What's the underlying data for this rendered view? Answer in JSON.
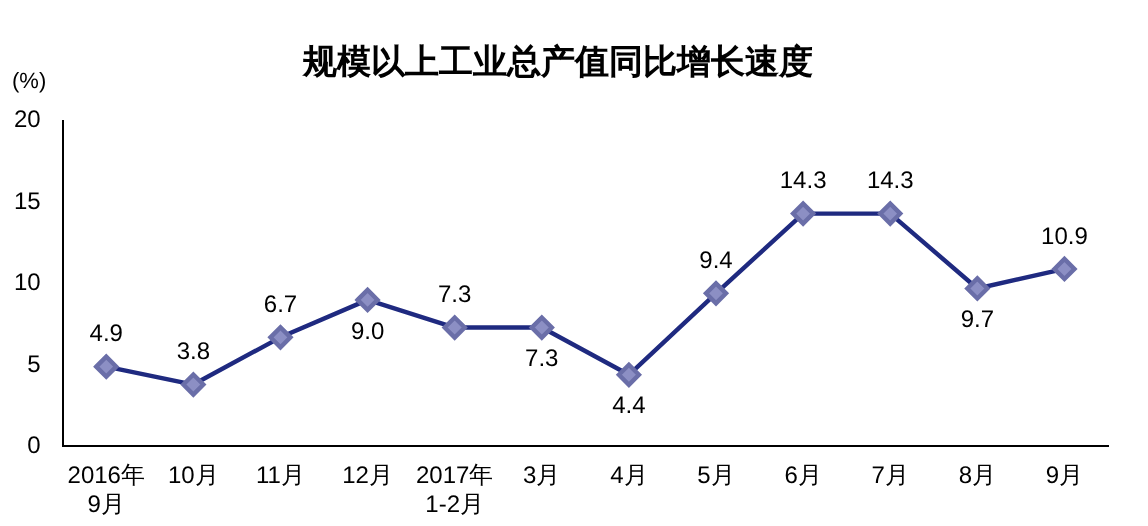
{
  "chart_data": {
    "type": "line",
    "title": "规模以上工业总产值同比增长速度",
    "ylabel": "(%)",
    "categories": [
      "2016年\n9月",
      "10月",
      "11月",
      "12月",
      "2017年\n1-2月",
      "3月",
      "4月",
      "5月",
      "6月",
      "7月",
      "8月",
      "9月"
    ],
    "series": [
      {
        "color": "#1f2a80",
        "values": [
          4.9,
          3.8,
          6.7,
          9.0,
          7.3,
          7.3,
          4.4,
          9.4,
          14.3,
          14.3,
          9.7,
          10.9
        ],
        "value_labels": [
          "4.9",
          "3.8",
          "6.7",
          "9.0",
          "7.3",
          "7.3",
          "4.4",
          "9.4",
          "14.3",
          "14.3",
          "9.7",
          "10.9"
        ]
      }
    ],
    "ylim": [
      0,
      20
    ],
    "yticks": [
      0,
      5,
      10,
      15,
      20
    ],
    "grid": false,
    "legend": false,
    "marker": "diamond",
    "line_style": "solid"
  }
}
